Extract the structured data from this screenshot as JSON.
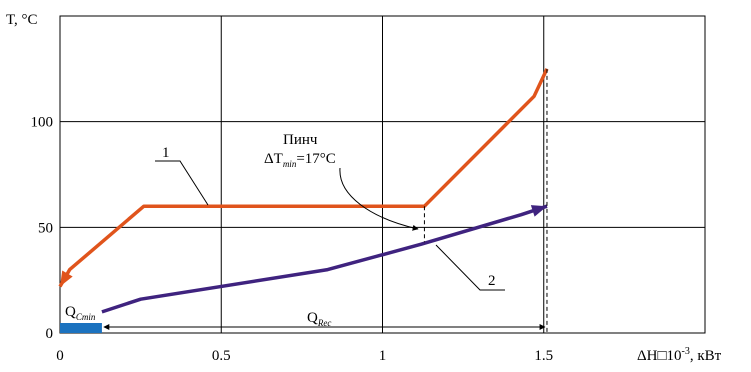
{
  "chart_data": {
    "type": "line",
    "ylabel": "T, °C",
    "xlabel": "ΔH□10",
    "xlabel_exp": "-3",
    "xlabel_unit": ", кВт",
    "xlim": [
      0,
      2
    ],
    "ylim": [
      0,
      150
    ],
    "x_ticks": [
      0,
      0.5,
      1,
      1.5
    ],
    "x_tick_labels": [
      "0",
      "0.5",
      "1",
      "1.5"
    ],
    "y_ticks": [
      0,
      50,
      100
    ],
    "y_tick_labels": [
      "0",
      "50",
      "100"
    ],
    "grid": true,
    "colors": {
      "hot": "#e0541c",
      "cold": "#3f237f",
      "qcmin": "#1b72bf"
    },
    "series": [
      {
        "name": "1",
        "x": [
          0.0,
          0.03,
          0.26,
          1.13,
          1.47,
          1.51
        ],
        "y": [
          22,
          30,
          60,
          60,
          112,
          125
        ]
      },
      {
        "name": "2",
        "x": [
          0.13,
          0.25,
          0.83,
          1.12,
          1.43,
          1.51
        ],
        "y": [
          10,
          16,
          30,
          42,
          56,
          60
        ]
      }
    ],
    "annotations": {
      "pinch_title": "Пинч",
      "pinch_dt": "ΔT",
      "pinch_dt_sub": "min",
      "pinch_value": "=17°C",
      "qc_main": "Q",
      "qc_sub": "Cmin",
      "qrec_main": "Q",
      "qrec_sub": "Rec",
      "label_1": "1",
      "label_2": "2"
    }
  }
}
